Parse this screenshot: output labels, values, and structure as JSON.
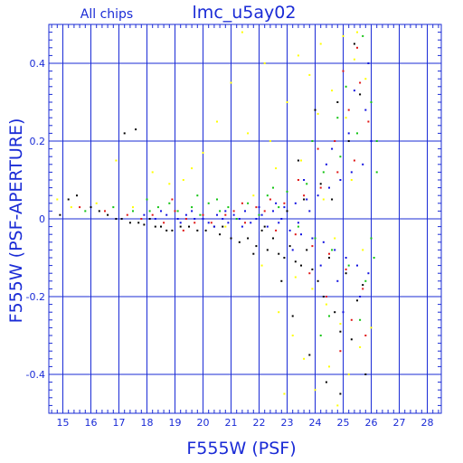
{
  "chart_data": {
    "type": "scatter",
    "title": "lmc_u5ay02",
    "subtitle": "All chips",
    "xlabel": "F555W (PSF)",
    "ylabel": "F555W (PSF-APERTURE)",
    "xlim": [
      14.5,
      28.5
    ],
    "ylim": [
      -0.5,
      0.5
    ],
    "x_ticks": [
      15,
      16,
      17,
      18,
      19,
      20,
      21,
      22,
      23,
      24,
      25,
      26,
      27,
      28
    ],
    "y_ticks": [
      -0.4,
      -0.2,
      0,
      0.2,
      0.4
    ],
    "x_tick_labels": [
      "15",
      "16",
      "17",
      "18",
      "19",
      "20",
      "21",
      "22",
      "23",
      "24",
      "25",
      "26",
      "27",
      "28"
    ],
    "y_tick_labels": [
      "-0.4",
      "-0.2",
      "0",
      "0.2",
      "0.4"
    ],
    "grid": true,
    "colors": {
      "axis": "#1a2bd6",
      "grid": "#1a2bd6",
      "black": "#000000",
      "red": "#e01515",
      "green": "#12c412",
      "blue": "#1010e0",
      "yellow": "#ffff00"
    },
    "series": [
      {
        "color_key": "black",
        "points": [
          [
            14.9,
            0.01
          ],
          [
            15.2,
            0.05
          ],
          [
            15.5,
            0.06
          ],
          [
            16.0,
            0.03
          ],
          [
            16.3,
            0.02
          ],
          [
            16.6,
            0.01
          ],
          [
            16.9,
            0.0
          ],
          [
            17.1,
            0.0
          ],
          [
            17.4,
            -0.01
          ],
          [
            17.7,
            -0.01
          ],
          [
            17.9,
            -0.015
          ],
          [
            18.1,
            0.0
          ],
          [
            18.3,
            -0.02
          ],
          [
            18.5,
            -0.02
          ],
          [
            18.7,
            -0.03
          ],
          [
            18.9,
            -0.03
          ],
          [
            19.2,
            -0.02
          ],
          [
            19.5,
            -0.02
          ],
          [
            19.8,
            -0.03
          ],
          [
            20.1,
            -0.03
          ],
          [
            20.4,
            -0.02
          ],
          [
            20.7,
            -0.02
          ],
          [
            21.0,
            -0.05
          ],
          [
            21.3,
            -0.06
          ],
          [
            21.6,
            -0.05
          ],
          [
            21.9,
            -0.07
          ],
          [
            22.1,
            -0.03
          ],
          [
            22.3,
            -0.08
          ],
          [
            22.5,
            -0.05
          ],
          [
            22.7,
            -0.09
          ],
          [
            22.9,
            -0.1
          ],
          [
            23.1,
            -0.07
          ],
          [
            23.3,
            -0.11
          ],
          [
            23.5,
            -0.12
          ],
          [
            23.7,
            -0.08
          ],
          [
            23.9,
            -0.13
          ],
          [
            24.1,
            -0.16
          ],
          [
            24.3,
            -0.2
          ],
          [
            24.5,
            -0.1
          ],
          [
            24.7,
            -0.24
          ],
          [
            24.9,
            -0.29
          ],
          [
            25.1,
            -0.14
          ],
          [
            25.3,
            -0.31
          ],
          [
            25.5,
            -0.21
          ],
          [
            25.7,
            -0.17
          ],
          [
            23.2,
            -0.25
          ],
          [
            23.8,
            -0.35
          ],
          [
            24.4,
            -0.42
          ],
          [
            24.6,
            0.05
          ],
          [
            24.2,
            0.09
          ],
          [
            25.2,
            0.2
          ],
          [
            25.6,
            0.32
          ],
          [
            23.6,
            0.05
          ],
          [
            17.6,
            0.23
          ],
          [
            17.2,
            0.22
          ],
          [
            22.8,
            -0.16
          ],
          [
            21.8,
            -0.09
          ],
          [
            20.6,
            -0.04
          ],
          [
            24.8,
            0.3
          ],
          [
            25.4,
            0.45
          ],
          [
            23.4,
            0.15
          ],
          [
            24.0,
            0.28
          ],
          [
            25.8,
            -0.4
          ],
          [
            24.9,
            -0.45
          ],
          [
            23.0,
            0.02
          ],
          [
            22.2,
            -0.02
          ]
        ]
      },
      {
        "color_key": "red",
        "points": [
          [
            15.6,
            0.03
          ],
          [
            16.5,
            0.02
          ],
          [
            17.3,
            0.01
          ],
          [
            17.8,
            0.0
          ],
          [
            18.2,
            0.01
          ],
          [
            18.6,
            -0.01
          ],
          [
            19.0,
            0.02
          ],
          [
            19.4,
            0.0
          ],
          [
            19.7,
            -0.01
          ],
          [
            20.0,
            0.01
          ],
          [
            20.3,
            -0.01
          ],
          [
            20.8,
            0.01
          ],
          [
            21.1,
            0.02
          ],
          [
            21.5,
            -0.01
          ],
          [
            21.9,
            0.03
          ],
          [
            22.2,
            0.02
          ],
          [
            22.6,
            -0.03
          ],
          [
            22.9,
            0.04
          ],
          [
            23.3,
            -0.04
          ],
          [
            23.6,
            0.06
          ],
          [
            23.9,
            -0.07
          ],
          [
            24.2,
            0.08
          ],
          [
            24.5,
            -0.09
          ],
          [
            24.8,
            0.12
          ],
          [
            25.1,
            -0.13
          ],
          [
            25.4,
            0.15
          ],
          [
            25.7,
            -0.18
          ],
          [
            25.9,
            0.25
          ],
          [
            25.6,
            0.35
          ],
          [
            25.3,
            -0.26
          ],
          [
            24.7,
            0.2
          ],
          [
            24.4,
            -0.2
          ],
          [
            25.0,
            0.38
          ],
          [
            25.8,
            -0.3
          ],
          [
            24.1,
            0.18
          ],
          [
            23.4,
            0.1
          ],
          [
            18.9,
            0.05
          ],
          [
            19.3,
            -0.03
          ],
          [
            21.4,
            0.04
          ],
          [
            22.4,
            0.05
          ],
          [
            25.2,
            0.28
          ],
          [
            24.9,
            -0.34
          ],
          [
            25.5,
            0.44
          ],
          [
            23.8,
            -0.14
          ]
        ]
      },
      {
        "color_key": "green",
        "points": [
          [
            15.8,
            0.02
          ],
          [
            16.8,
            0.03
          ],
          [
            17.5,
            0.02
          ],
          [
            18.0,
            0.05
          ],
          [
            18.4,
            0.03
          ],
          [
            18.8,
            0.04
          ],
          [
            19.1,
            0.02
          ],
          [
            19.6,
            0.03
          ],
          [
            19.9,
            0.01
          ],
          [
            20.2,
            0.04
          ],
          [
            20.6,
            0.02
          ],
          [
            20.9,
            0.03
          ],
          [
            21.2,
            0.0
          ],
          [
            21.6,
            0.04
          ],
          [
            22.0,
            0.01
          ],
          [
            22.3,
            0.06
          ],
          [
            22.7,
            0.03
          ],
          [
            23.0,
            0.07
          ],
          [
            23.4,
            -0.02
          ],
          [
            23.7,
            0.09
          ],
          [
            24.0,
            -0.05
          ],
          [
            24.3,
            0.12
          ],
          [
            24.6,
            -0.08
          ],
          [
            24.9,
            0.16
          ],
          [
            25.2,
            -0.12
          ],
          [
            25.5,
            0.22
          ],
          [
            25.8,
            -0.16
          ],
          [
            26.0,
            0.3
          ],
          [
            26.1,
            -0.1
          ],
          [
            26.2,
            0.12
          ],
          [
            25.9,
            0.4
          ],
          [
            25.6,
            -0.26
          ],
          [
            24.8,
            0.26
          ],
          [
            24.5,
            -0.25
          ],
          [
            23.9,
            0.2
          ],
          [
            26.2,
            0.2
          ],
          [
            18.1,
            0.02
          ],
          [
            19.8,
            0.06
          ],
          [
            20.5,
            0.05
          ],
          [
            22.5,
            0.08
          ],
          [
            25.1,
            0.34
          ],
          [
            25.7,
            0.47
          ],
          [
            26.0,
            -0.05
          ],
          [
            24.2,
            -0.3
          ]
        ]
      },
      {
        "color_key": "blue",
        "points": [
          [
            17.9,
            0.01
          ],
          [
            18.3,
            0.0
          ],
          [
            18.7,
            0.01
          ],
          [
            19.1,
            0.0
          ],
          [
            19.4,
            0.01
          ],
          [
            19.7,
            0.0
          ],
          [
            20.0,
            0.0
          ],
          [
            20.2,
            -0.01
          ],
          [
            20.5,
            0.01
          ],
          [
            20.7,
            0.0
          ],
          [
            20.9,
            -0.01
          ],
          [
            21.1,
            0.01
          ],
          [
            21.3,
            0.0
          ],
          [
            21.5,
            0.02
          ],
          [
            21.7,
            -0.01
          ],
          [
            21.9,
            0.0
          ],
          [
            22.1,
            0.01
          ],
          [
            22.3,
            -0.02
          ],
          [
            22.5,
            0.02
          ],
          [
            22.7,
            -0.01
          ],
          [
            22.9,
            0.03
          ],
          [
            23.1,
            -0.03
          ],
          [
            23.3,
            0.04
          ],
          [
            23.5,
            -0.04
          ],
          [
            23.7,
            0.05
          ],
          [
            23.9,
            -0.05
          ],
          [
            24.1,
            0.06
          ],
          [
            24.3,
            -0.06
          ],
          [
            24.5,
            0.08
          ],
          [
            24.7,
            -0.08
          ],
          [
            24.9,
            0.1
          ],
          [
            25.1,
            -0.1
          ],
          [
            25.3,
            0.12
          ],
          [
            25.5,
            -0.12
          ],
          [
            25.7,
            0.14
          ],
          [
            25.9,
            -0.14
          ],
          [
            26.0,
            0.2
          ],
          [
            25.8,
            0.28
          ],
          [
            25.6,
            -0.2
          ],
          [
            25.2,
            0.22
          ],
          [
            24.8,
            -0.16
          ],
          [
            24.4,
            0.14
          ],
          [
            23.6,
            0.1
          ],
          [
            23.2,
            -0.08
          ],
          [
            22.6,
            0.04
          ],
          [
            22.0,
            0.03
          ],
          [
            21.4,
            -0.02
          ],
          [
            20.8,
            0.02
          ],
          [
            20.4,
            -0.02
          ],
          [
            19.6,
            0.02
          ],
          [
            19.2,
            -0.01
          ],
          [
            18.5,
            0.02
          ],
          [
            25.4,
            0.33
          ],
          [
            25.0,
            -0.24
          ],
          [
            24.6,
            0.18
          ],
          [
            25.9,
            0.4
          ],
          [
            24.2,
            -0.12
          ],
          [
            23.8,
            0.02
          ],
          [
            23.4,
            -0.01
          ],
          [
            22.8,
            0.0
          ]
        ]
      },
      {
        "color_key": "yellow",
        "points": [
          [
            14.8,
            0.05
          ],
          [
            15.3,
            0.03
          ],
          [
            16.2,
            0.04
          ],
          [
            16.9,
            0.15
          ],
          [
            17.5,
            0.03
          ],
          [
            18.2,
            0.12
          ],
          [
            18.8,
            0.09
          ],
          [
            19.3,
            0.1
          ],
          [
            19.6,
            0.13
          ],
          [
            20.0,
            0.17
          ],
          [
            20.5,
            0.25
          ],
          [
            21.0,
            0.35
          ],
          [
            21.4,
            0.48
          ],
          [
            21.8,
            0.06
          ],
          [
            22.1,
            -0.12
          ],
          [
            22.4,
            0.2
          ],
          [
            22.7,
            -0.24
          ],
          [
            23.0,
            0.3
          ],
          [
            23.2,
            -0.3
          ],
          [
            23.4,
            0.42
          ],
          [
            23.6,
            -0.36
          ],
          [
            23.8,
            0.37
          ],
          [
            24.0,
            -0.44
          ],
          [
            24.2,
            0.45
          ],
          [
            24.4,
            -0.22
          ],
          [
            24.6,
            0.33
          ],
          [
            24.8,
            -0.48
          ],
          [
            25.0,
            0.47
          ],
          [
            25.2,
            -0.4
          ],
          [
            25.4,
            0.41
          ],
          [
            25.6,
            -0.33
          ],
          [
            25.8,
            0.36
          ],
          [
            26.0,
            -0.28
          ],
          [
            24.3,
            0.05
          ],
          [
            24.7,
            -0.05
          ],
          [
            25.3,
            0.1
          ],
          [
            25.7,
            -0.08
          ],
          [
            23.5,
            0.15
          ],
          [
            22.9,
            -0.45
          ],
          [
            23.9,
            -0.18
          ],
          [
            25.1,
            0.26
          ],
          [
            20.8,
            -0.02
          ],
          [
            22.2,
            0.4
          ],
          [
            24.1,
            0.27
          ],
          [
            24.5,
            -0.38
          ],
          [
            25.5,
            0.48
          ],
          [
            22.6,
            0.13
          ],
          [
            24.9,
            -0.27
          ],
          [
            23.3,
            -0.15
          ],
          [
            21.6,
            0.22
          ]
        ]
      }
    ]
  }
}
